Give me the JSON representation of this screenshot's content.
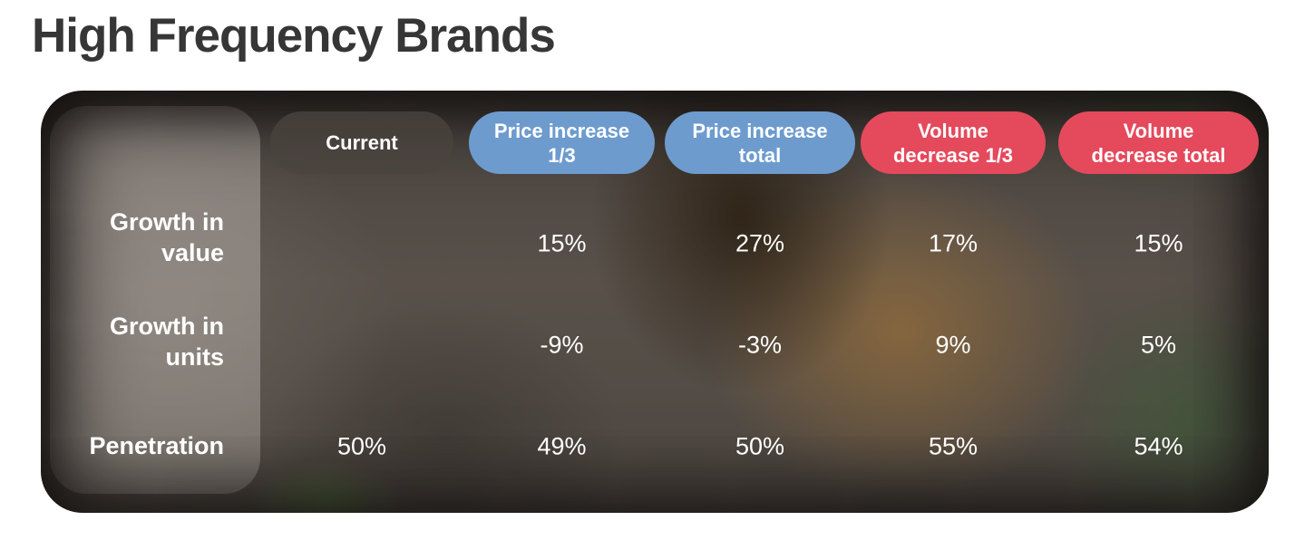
{
  "title": "High Frequency Brands",
  "chart_data": {
    "type": "table",
    "title": "High Frequency Brands",
    "columns": [
      "Current",
      "Price increase 1/3",
      "Price increase total",
      "Volume decrease 1/3",
      "Volume decrease total"
    ],
    "rows": [
      "Growth in value",
      "Growth in units",
      "Penetration"
    ],
    "values_pct": [
      [
        null,
        15,
        27,
        17,
        15
      ],
      [
        null,
        -9,
        -3,
        9,
        5
      ],
      [
        50,
        49,
        50,
        55,
        54
      ]
    ],
    "unit": "%"
  },
  "table": {
    "columns": [
      {
        "label": "Current",
        "display": "Current",
        "color": "#4a433e"
      },
      {
        "label": "Price increase 1/3",
        "display": "Price increase\n1/3",
        "color": "#6d9bce"
      },
      {
        "label": "Price increase total",
        "display": "Price increase\ntotal",
        "color": "#6d9bce"
      },
      {
        "label": "Volume decrease 1/3",
        "display": "Volume\ndecrease 1/3",
        "color": "#e5495c"
      },
      {
        "label": "Volume decrease total",
        "display": "Volume\ndecrease total",
        "color": "#e5495c"
      }
    ],
    "row_labels": [
      {
        "label": "Growth in value",
        "display": "Growth in\nvalue"
      },
      {
        "label": "Growth in units",
        "display": "Growth in\nunits"
      },
      {
        "label": "Penetration",
        "display": "Penetration"
      }
    ],
    "cells": [
      {
        "current": "",
        "price_increase_13": "15%",
        "price_increase_total": "27%",
        "volume_decrease_13": "17%",
        "volume_decrease_total": "15%"
      },
      {
        "current": "",
        "price_increase_13": "-9%",
        "price_increase_total": "-3%",
        "volume_decrease_13": "9%",
        "volume_decrease_total": "5%"
      },
      {
        "current": "50%",
        "price_increase_13": "49%",
        "price_increase_total": "50%",
        "volume_decrease_13": "55%",
        "volume_decrease_total": "54%"
      }
    ]
  },
  "colors": {
    "title_text": "#363636",
    "value_text": "#ffffff",
    "pill_neutral": "#4a433e",
    "pill_blue": "#6d9bce",
    "pill_red": "#e5495c",
    "panel_base": "#4e4842"
  }
}
